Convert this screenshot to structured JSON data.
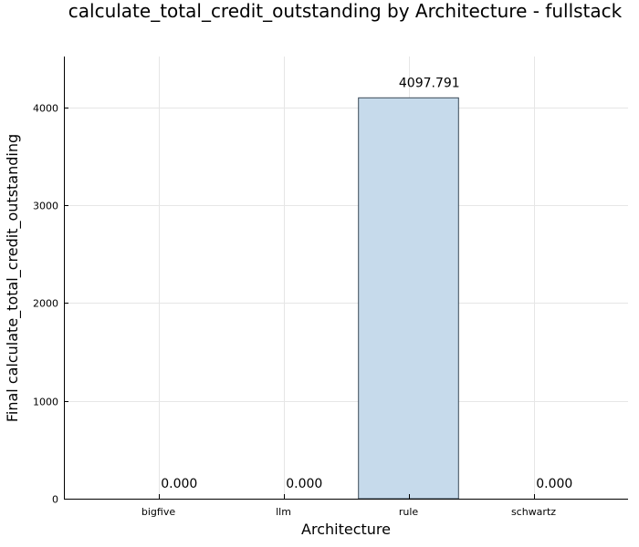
{
  "chart_data": {
    "type": "bar",
    "title": "calculate_total_credit_outstanding by Architecture - fullstack",
    "xlabel": "Architecture",
    "ylabel": "Final calculate_total_credit_outstanding",
    "categories": [
      "bigfive",
      "llm",
      "rule",
      "schwartz"
    ],
    "values": [
      0.0,
      0.0,
      4097.791,
      0.0
    ],
    "data_labels": [
      "0.000",
      "0.000",
      "4097.791",
      "0.000"
    ],
    "ylim": [
      0,
      4520
    ],
    "yticks": [
      0,
      1000,
      2000,
      3000,
      4000
    ],
    "ytick_labels": [
      "0",
      "1000",
      "2000",
      "3000",
      "4000"
    ],
    "grid": true,
    "legend": "none",
    "colors": {
      "bar_fill": "#c6daeb",
      "bar_stroke": "#3a4a58",
      "grid": "#e6e6e6"
    }
  }
}
